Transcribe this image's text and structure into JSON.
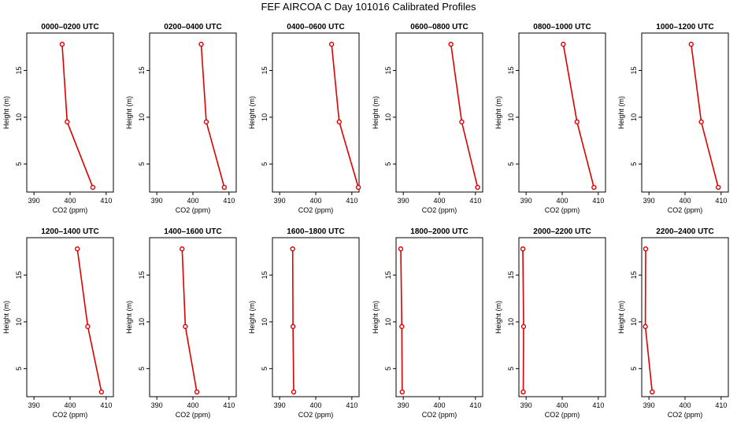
{
  "page": {
    "title": "FEF AIRCOA C  Day 101016  Calibrated Profiles"
  },
  "style": {
    "line_color": "#dd0000",
    "axis_color": "#000000"
  },
  "chart_data": {
    "type": "line",
    "title": "FEF AIRCOA C  Day 101016  Calibrated Profiles",
    "xlabel": "CO2 (ppm)",
    "ylabel": "Height (m)",
    "xlim": [
      388,
      412
    ],
    "ylim": [
      2,
      19
    ],
    "xticks": [
      390,
      400,
      410
    ],
    "yticks": [
      5,
      10,
      15
    ],
    "heights": [
      2.5,
      9.5,
      17.8
    ],
    "panels": [
      {
        "title": "0000–0200 UTC",
        "co2": [
          406.3,
          399.2,
          397.8
        ]
      },
      {
        "title": "0200–0400 UTC",
        "co2": [
          408.7,
          403.7,
          402.3
        ]
      },
      {
        "title": "0400–0600 UTC",
        "co2": [
          411.8,
          406.5,
          404.4
        ]
      },
      {
        "title": "0600–0800 UTC",
        "co2": [
          410.6,
          406.2,
          403.2
        ]
      },
      {
        "title": "0800–1000 UTC",
        "co2": [
          408.8,
          404.1,
          400.3
        ]
      },
      {
        "title": "1000–1200 UTC",
        "co2": [
          409.2,
          404.5,
          401.7
        ]
      },
      {
        "title": "1200–1400 UTC",
        "co2": [
          408.7,
          404.9,
          402.0
        ]
      },
      {
        "title": "1400–1600 UTC",
        "co2": [
          401.1,
          397.9,
          397.0
        ]
      },
      {
        "title": "1600–1800 UTC",
        "co2": [
          393.9,
          393.7,
          393.6
        ]
      },
      {
        "title": "1800–2000 UTC",
        "co2": [
          389.7,
          389.6,
          389.3
        ]
      },
      {
        "title": "2000–2200 UTC",
        "co2": [
          389.2,
          389.3,
          389.1
        ]
      },
      {
        "title": "2200–2400 UTC",
        "co2": [
          390.9,
          389.0,
          389.1
        ]
      }
    ]
  }
}
